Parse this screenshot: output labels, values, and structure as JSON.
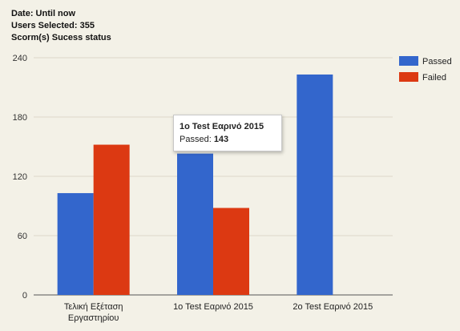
{
  "header": {
    "line1": "Date: Until now",
    "line2": "Users Selected: 355",
    "line3": "Scorm(s) Sucess status"
  },
  "colors": {
    "passed": "#3366cc",
    "failed": "#dc3912",
    "grid": "#dcd8c8",
    "axis": "#555555"
  },
  "chart_data": {
    "type": "bar",
    "categories": [
      [
        "Τελική Εξέταση",
        "Εργαστηρίου"
      ],
      [
        "1o Test Εαρινό 2015"
      ],
      [
        "2o Test Εαρινό 2015"
      ]
    ],
    "series": [
      {
        "name": "Passed",
        "values": [
          103,
          143,
          223
        ]
      },
      {
        "name": "Failed",
        "values": [
          152,
          88,
          0
        ]
      }
    ],
    "ylim": [
      0,
      240
    ],
    "yticks": [
      0,
      60,
      120,
      180,
      240
    ],
    "grid": true,
    "legend": "right"
  },
  "tooltip": {
    "title": "1o Test Εαρινό 2015",
    "label": "Passed:",
    "value": "143"
  }
}
